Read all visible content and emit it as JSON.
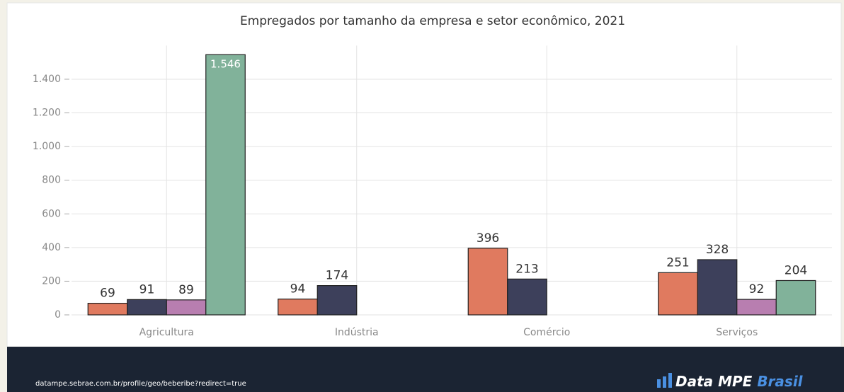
{
  "chart_data": {
    "type": "bar",
    "title": "Empregados por tamanho da empresa e setor econômico, 2021",
    "categories": [
      "Agricultura",
      "Indústria",
      "Comércio",
      "Serviços"
    ],
    "series": [
      {
        "color": "#e07a5f",
        "values": [
          69,
          94,
          396,
          251
        ]
      },
      {
        "color": "#3d405b",
        "values": [
          91,
          174,
          213,
          328
        ]
      },
      {
        "color": "#b87eb0",
        "values": [
          89,
          null,
          null,
          92
        ]
      },
      {
        "color": "#81b29a",
        "values": [
          1546,
          null,
          null,
          204
        ],
        "value_labels": [
          "1.546",
          null,
          null,
          "204"
        ]
      }
    ],
    "ylim": [
      0,
      1600
    ],
    "yticks": [
      0,
      200,
      400,
      600,
      800,
      {
        "value": 1000,
        "label": "1.000"
      },
      {
        "value": 1200,
        "label": "1.200"
      },
      {
        "value": 1400,
        "label": "1.400"
      }
    ],
    "grid": true
  },
  "footer": {
    "url": "datampe.sebrae.com.br/profile/geo/beberibe?redirect=true",
    "logo": "Data MPE",
    "logo_accent": "Brasil"
  }
}
